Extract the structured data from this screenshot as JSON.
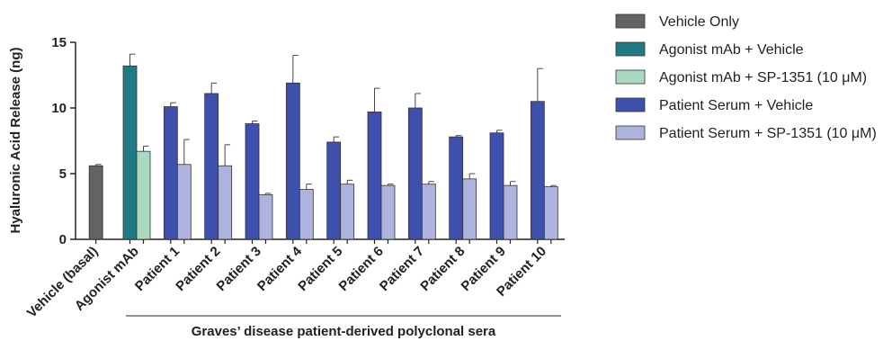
{
  "chart_data": {
    "type": "bar",
    "title": "",
    "ylabel": "Hyaluronic Acid Release (ng)",
    "xlabel": "",
    "group_caption": "Graves’ disease patient-derived polyclonal sera",
    "ylim": [
      0,
      15
    ],
    "yticks": [
      0,
      5,
      10,
      15
    ],
    "grid": false,
    "legend_position": "top-right",
    "categories": [
      "Vehicle (basal)",
      "Agonist mAb",
      "Patient 1",
      "Patient 2",
      "Patient 3",
      "Patient 4",
      "Patient 5",
      "Patient 6",
      "Patient 7",
      "Patient 8",
      "Patient 9",
      "Patient 10"
    ],
    "series": [
      {
        "name": "Vehicle Only",
        "color": "#636363",
        "values": [
          5.6,
          null,
          null,
          null,
          null,
          null,
          null,
          null,
          null,
          null,
          null,
          null
        ],
        "errors": [
          0.1,
          null,
          null,
          null,
          null,
          null,
          null,
          null,
          null,
          null,
          null,
          null
        ]
      },
      {
        "name": "Agonist mAb + Vehicle",
        "color": "#207a85",
        "values": [
          null,
          13.2,
          null,
          null,
          null,
          null,
          null,
          null,
          null,
          null,
          null,
          null
        ],
        "errors": [
          null,
          0.9,
          null,
          null,
          null,
          null,
          null,
          null,
          null,
          null,
          null,
          null
        ]
      },
      {
        "name": "Agonist mAb + SP-1351 (10 μM)",
        "color": "#a9d9bf",
        "values": [
          null,
          6.7,
          null,
          null,
          null,
          null,
          null,
          null,
          null,
          null,
          null,
          null
        ],
        "errors": [
          null,
          0.4,
          null,
          null,
          null,
          null,
          null,
          null,
          null,
          null,
          null,
          null
        ]
      },
      {
        "name": "Patient Serum + Vehicle",
        "color": "#3f4fae",
        "values": [
          null,
          null,
          10.1,
          11.1,
          8.8,
          11.9,
          7.4,
          9.7,
          10.0,
          7.8,
          8.1,
          10.5
        ],
        "errors": [
          null,
          null,
          0.3,
          0.8,
          0.2,
          2.1,
          0.4,
          1.8,
          1.1,
          0.1,
          0.2,
          2.5
        ]
      },
      {
        "name": "Patient Serum + SP-1351 (10 μM)",
        "color": "#aeb2de",
        "values": [
          null,
          null,
          5.7,
          5.6,
          3.4,
          3.8,
          4.2,
          4.1,
          4.2,
          4.6,
          4.1,
          4.0
        ],
        "errors": [
          null,
          null,
          1.9,
          1.6,
          0.1,
          0.4,
          0.3,
          0.1,
          0.2,
          0.4,
          0.3,
          0.1
        ]
      }
    ]
  }
}
